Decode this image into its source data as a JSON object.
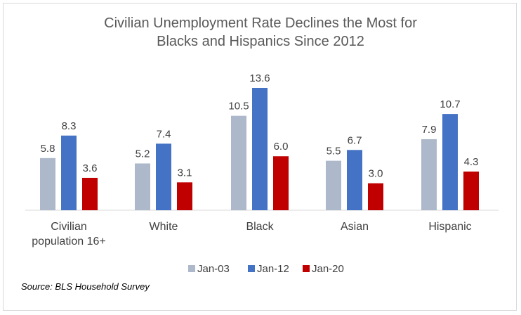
{
  "chart_data": {
    "type": "bar",
    "title": [
      "Civilian Unemployment Rate Declines the Most for",
      "Blacks and Hispanics Since 2012"
    ],
    "categories": [
      [
        "Civilian",
        "population 16+"
      ],
      [
        "White"
      ],
      [
        "Black"
      ],
      [
        "Asian"
      ],
      [
        "Hispanic"
      ]
    ],
    "series": [
      {
        "name": "Jan-03",
        "values": [
          5.8,
          5.2,
          10.5,
          5.5,
          7.9
        ],
        "color": "#adb9ca"
      },
      {
        "name": "Jan-12",
        "values": [
          8.3,
          7.4,
          13.6,
          6.7,
          10.7
        ],
        "color": "#4472c4"
      },
      {
        "name": "Jan-20",
        "values": [
          3.6,
          3.1,
          6.0,
          3.0,
          4.3
        ],
        "color": "#c00000"
      }
    ],
    "value_labels": [
      [
        "5.8",
        "5.2",
        "10.5",
        "5.5",
        "7.9"
      ],
      [
        "8.3",
        "7.4",
        "13.6",
        "6.7",
        "10.7"
      ],
      [
        "3.6",
        "3.1",
        "6.0",
        "3.0",
        "4.3"
      ]
    ],
    "ylim": [
      0,
      14
    ],
    "grid": false,
    "legend_position": "bottom"
  },
  "source": "Source: BLS Household Survey"
}
